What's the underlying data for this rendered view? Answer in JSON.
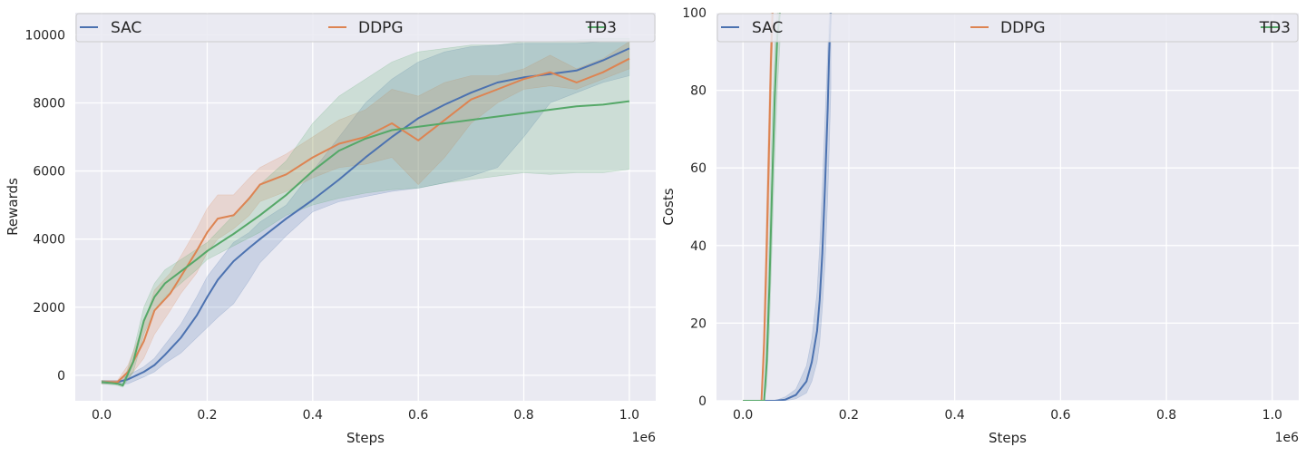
{
  "chart_data": [
    {
      "type": "line",
      "panel": "rewards",
      "xlabel": "Steps",
      "ylabel": "Rewards",
      "x_multiplier_label": "1e6",
      "xlim": [
        -0.05,
        1.05
      ],
      "ylim": [
        -750,
        10650
      ],
      "xticks": [
        "0.0",
        "0.2",
        "0.4",
        "0.6",
        "0.8",
        "1.0"
      ],
      "xtick_values": [
        0,
        0.2,
        0.4,
        0.6,
        0.8,
        1.0
      ],
      "yticks": [
        "0",
        "2000",
        "4000",
        "6000",
        "8000",
        "10000"
      ],
      "ytick_values": [
        0,
        2000,
        4000,
        6000,
        8000,
        10000
      ],
      "grid": true,
      "legend_position": "top (full width, 3 columns)",
      "series": [
        {
          "name": "SAC",
          "color": "#4c72b0",
          "x": [
            0,
            0.03,
            0.05,
            0.08,
            0.1,
            0.12,
            0.15,
            0.18,
            0.2,
            0.22,
            0.25,
            0.28,
            0.3,
            0.35,
            0.4,
            0.45,
            0.5,
            0.55,
            0.6,
            0.65,
            0.7,
            0.75,
            0.8,
            0.85,
            0.9,
            0.95,
            1.0
          ],
          "y": [
            -200,
            -200,
            -120,
            100,
            300,
            600,
            1100,
            1750,
            2300,
            2800,
            3350,
            3750,
            4000,
            4600,
            5150,
            5750,
            6400,
            7000,
            7550,
            7950,
            8300,
            8600,
            8750,
            8850,
            8950,
            9250,
            9600
          ],
          "lower": [
            -250,
            -250,
            -250,
            -50,
            100,
            350,
            650,
            1100,
            1400,
            1700,
            2100,
            2800,
            3300,
            4100,
            4800,
            5100,
            5250,
            5400,
            5500,
            5650,
            5850,
            6100,
            7000,
            8000,
            8300,
            8600,
            8800
          ],
          "upper": [
            -150,
            -150,
            0,
            250,
            500,
            900,
            1500,
            2300,
            2900,
            3300,
            3900,
            4200,
            4500,
            5000,
            6000,
            7000,
            8000,
            8700,
            9200,
            9500,
            9650,
            9700,
            9750,
            9750,
            9750,
            9800,
            9800
          ]
        },
        {
          "name": "DDPG",
          "color": "#dd8452",
          "x": [
            0,
            0.03,
            0.05,
            0.08,
            0.1,
            0.13,
            0.15,
            0.18,
            0.2,
            0.22,
            0.25,
            0.28,
            0.3,
            0.35,
            0.4,
            0.45,
            0.5,
            0.55,
            0.6,
            0.65,
            0.7,
            0.75,
            0.8,
            0.85,
            0.9,
            0.95,
            1.0
          ],
          "y": [
            -200,
            -200,
            100,
            1000,
            1900,
            2400,
            2900,
            3650,
            4200,
            4600,
            4700,
            5200,
            5600,
            5900,
            6400,
            6800,
            7000,
            7400,
            6900,
            7500,
            8100,
            8400,
            8700,
            8900,
            8600,
            8900,
            9300
          ],
          "lower": [
            -250,
            -250,
            -100,
            500,
            1200,
            1900,
            2400,
            3000,
            3600,
            4000,
            4300,
            4700,
            5100,
            5400,
            5800,
            6100,
            6200,
            6400,
            5600,
            6400,
            7400,
            8000,
            8400,
            8500,
            8400,
            8700,
            9000
          ],
          "upper": [
            -150,
            -150,
            300,
            1500,
            2500,
            3000,
            3500,
            4300,
            4900,
            5300,
            5300,
            5800,
            6100,
            6500,
            7000,
            7500,
            7800,
            8400,
            8200,
            8600,
            8800,
            8800,
            9000,
            9400,
            9000,
            9300,
            9800
          ]
        },
        {
          "name": "TD3",
          "color": "#55a868",
          "x": [
            0,
            0.03,
            0.04,
            0.06,
            0.08,
            0.1,
            0.12,
            0.15,
            0.18,
            0.2,
            0.25,
            0.3,
            0.35,
            0.4,
            0.45,
            0.5,
            0.55,
            0.6,
            0.65,
            0.7,
            0.75,
            0.8,
            0.85,
            0.9,
            0.95,
            1.0
          ],
          "y": [
            -200,
            -250,
            -300,
            400,
            1600,
            2300,
            2700,
            3050,
            3400,
            3650,
            4150,
            4700,
            5300,
            6000,
            6600,
            6950,
            7200,
            7300,
            7400,
            7500,
            7600,
            7700,
            7800,
            7900,
            7950,
            8050
          ],
          "lower": [
            -250,
            -300,
            -350,
            100,
            1200,
            1900,
            2300,
            2700,
            3100,
            3400,
            3800,
            4200,
            4700,
            5000,
            5200,
            5350,
            5450,
            5500,
            5650,
            5750,
            5850,
            5950,
            5900,
            5950,
            5950,
            6050
          ],
          "upper": [
            -150,
            -200,
            -250,
            700,
            2000,
            2700,
            3100,
            3400,
            3700,
            3900,
            4700,
            5600,
            6300,
            7400,
            8200,
            8700,
            9200,
            9500,
            9600,
            9700,
            9700,
            9800,
            9800,
            9850,
            9900,
            9900
          ]
        }
      ]
    },
    {
      "type": "line",
      "panel": "costs",
      "xlabel": "Steps",
      "ylabel": "Costs",
      "x_multiplier_label": "1e6",
      "xlim": [
        -0.05,
        1.05
      ],
      "ylim": [
        0,
        100
      ],
      "xticks": [
        "0.0",
        "0.2",
        "0.4",
        "0.6",
        "0.8",
        "1.0"
      ],
      "xtick_values": [
        0,
        0.2,
        0.4,
        0.6,
        0.8,
        1.0
      ],
      "yticks": [
        "0",
        "20",
        "40",
        "60",
        "80",
        "100"
      ],
      "ytick_values": [
        0,
        20,
        40,
        60,
        80,
        100
      ],
      "grid": true,
      "legend_position": "top (full width, 3 columns)",
      "series": [
        {
          "name": "SAC",
          "color": "#4c72b0",
          "x": [
            0,
            0.06,
            0.08,
            0.1,
            0.12,
            0.13,
            0.14,
            0.145,
            0.15,
            0.155,
            0.16,
            0.163,
            0.166
          ],
          "y": [
            0,
            0,
            0.3,
            1.5,
            5,
            10,
            18,
            26,
            38,
            55,
            75,
            90,
            100
          ],
          "lower": [
            0,
            0,
            0,
            0.5,
            2,
            5,
            10,
            15,
            24,
            35,
            52,
            65,
            80
          ],
          "upper": [
            0,
            0,
            1,
            3,
            9,
            16,
            28,
            40,
            55,
            72,
            90,
            100,
            100
          ]
        },
        {
          "name": "DDPG",
          "color": "#dd8452",
          "x": [
            0,
            0.035,
            0.04,
            0.045,
            0.05,
            0.053,
            0.056
          ],
          "y": [
            0,
            0,
            15,
            40,
            70,
            88,
            100
          ],
          "lower": [
            0,
            0,
            8,
            28,
            55,
            75,
            92
          ],
          "upper": [
            0,
            0,
            22,
            52,
            82,
            100,
            100
          ]
        },
        {
          "name": "TD3",
          "color": "#55a868",
          "x": [
            0,
            0.04,
            0.045,
            0.05,
            0.055,
            0.06,
            0.065,
            0.07
          ],
          "y": [
            0,
            0,
            10,
            30,
            55,
            78,
            94,
            100
          ],
          "lower": [
            0,
            0,
            4,
            18,
            40,
            62,
            80,
            92
          ],
          "upper": [
            0,
            0,
            18,
            45,
            72,
            92,
            100,
            100
          ]
        }
      ]
    }
  ]
}
